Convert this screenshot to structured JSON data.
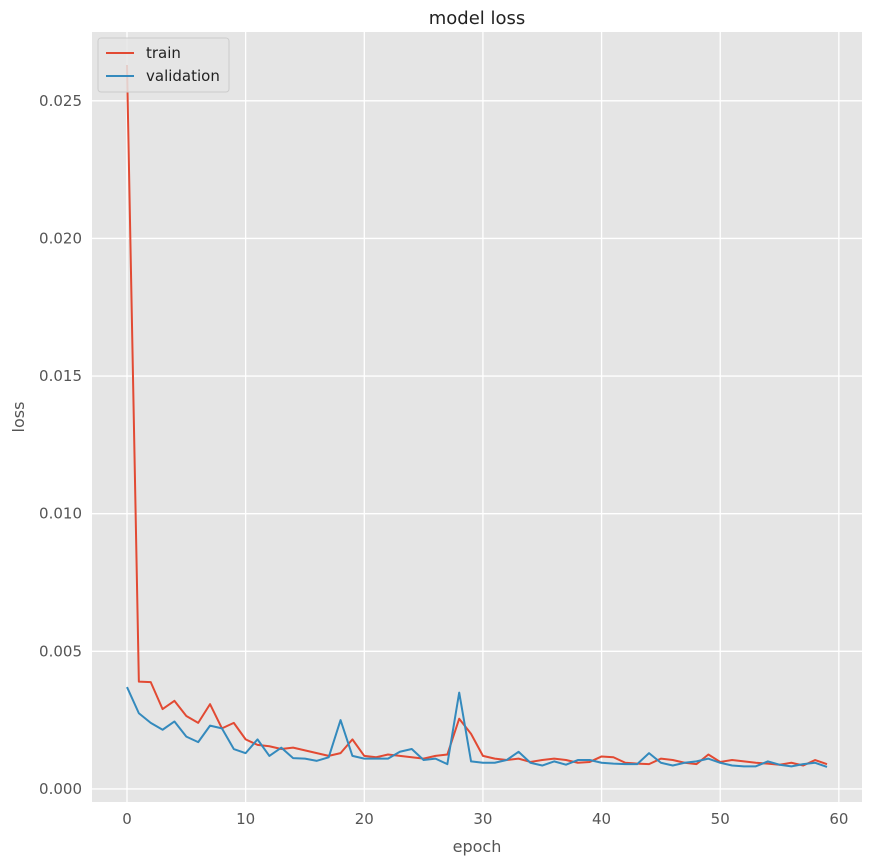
{
  "chart_data": {
    "type": "line",
    "title": "model loss",
    "xlabel": "epoch",
    "ylabel": "loss",
    "xlim": [
      -2.95,
      61.95
    ],
    "ylim": [
      -0.000475,
      0.0275
    ],
    "xticks": [
      0,
      10,
      20,
      30,
      40,
      50,
      60
    ],
    "yticks": [
      0.0,
      0.005,
      0.01,
      0.015,
      0.02,
      0.025
    ],
    "ytick_labels": [
      "0.000",
      "0.005",
      "0.010",
      "0.015",
      "0.020",
      "0.025"
    ],
    "grid": true,
    "legend_position": "upper left",
    "background": "#e5e5e5",
    "x": [
      0,
      1,
      2,
      3,
      4,
      5,
      6,
      7,
      8,
      9,
      10,
      11,
      12,
      13,
      14,
      15,
      16,
      17,
      18,
      19,
      20,
      21,
      22,
      23,
      24,
      25,
      26,
      27,
      28,
      29,
      30,
      31,
      32,
      33,
      34,
      35,
      36,
      37,
      38,
      39,
      40,
      41,
      42,
      43,
      44,
      45,
      46,
      47,
      48,
      49,
      50,
      51,
      52,
      53,
      54,
      55,
      56,
      57,
      58,
      59
    ],
    "series": [
      {
        "name": "train",
        "color": "#e24a33",
        "values": [
          0.0263,
          0.0039,
          0.00388,
          0.0029,
          0.0032,
          0.00265,
          0.0024,
          0.00308,
          0.0022,
          0.0024,
          0.0018,
          0.0016,
          0.00155,
          0.00145,
          0.0015,
          0.0014,
          0.0013,
          0.0012,
          0.0013,
          0.0018,
          0.0012,
          0.00115,
          0.00125,
          0.0012,
          0.00115,
          0.0011,
          0.0012,
          0.00125,
          0.00255,
          0.002,
          0.0012,
          0.0011,
          0.00105,
          0.0011,
          0.00098,
          0.00105,
          0.0011,
          0.00105,
          0.00095,
          0.00098,
          0.00118,
          0.00115,
          0.00095,
          0.00092,
          0.0009,
          0.0011,
          0.00105,
          0.00095,
          0.0009,
          0.00125,
          0.00098,
          0.00105,
          0.001,
          0.00095,
          0.00092,
          0.00088,
          0.00095,
          0.00085,
          0.00105,
          0.0009
        ]
      },
      {
        "name": "validation",
        "color": "#348abd",
        "values": [
          0.0037,
          0.00275,
          0.0024,
          0.00215,
          0.00245,
          0.0019,
          0.0017,
          0.0023,
          0.0022,
          0.00145,
          0.0013,
          0.0018,
          0.0012,
          0.0015,
          0.00112,
          0.0011,
          0.00102,
          0.00115,
          0.0025,
          0.0012,
          0.0011,
          0.0011,
          0.0011,
          0.00135,
          0.00145,
          0.00105,
          0.0011,
          0.0009,
          0.0035,
          0.001,
          0.00095,
          0.00095,
          0.00105,
          0.00135,
          0.00095,
          0.00085,
          0.001,
          0.00088,
          0.00105,
          0.00105,
          0.00095,
          0.00092,
          0.0009,
          0.0009,
          0.0013,
          0.00095,
          0.00085,
          0.00095,
          0.001,
          0.0011,
          0.00095,
          0.00085,
          0.00082,
          0.00082,
          0.001,
          0.00088,
          0.00082,
          0.0009,
          0.00095,
          0.0008
        ]
      }
    ]
  }
}
